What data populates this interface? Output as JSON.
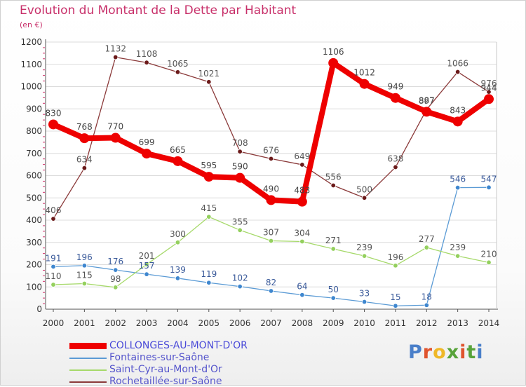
{
  "header": {
    "title": "Evolution du Montant de la Dette par Habitant",
    "subtitle": "(en €)"
  },
  "logo": {
    "text": "Proxiti",
    "letter_colors": [
      "#4a7fc9",
      "#e0542e",
      "#efb828",
      "#57a33a",
      "#e0542e",
      "#57a33a",
      "#4a7fc9"
    ]
  },
  "chart_data": {
    "type": "line",
    "title": "Evolution du Montant de la Dette par Habitant",
    "subtitle": "(en €)",
    "xlabel": "",
    "ylabel": "",
    "x": [
      "2000",
      "2001",
      "2002",
      "2003",
      "2004",
      "2005",
      "2006",
      "2007",
      "2008",
      "2009",
      "2010",
      "2011",
      "2012",
      "2013",
      "2014"
    ],
    "ylim": [
      0,
      1200
    ],
    "yticks": [
      "0",
      "100",
      "200",
      "300",
      "400",
      "500",
      "600",
      "700",
      "800",
      "900",
      "1000",
      "1100",
      "1200"
    ],
    "grid": "horizontal",
    "legend_position": "bottom-left",
    "series": [
      {
        "name": "COLLONGES-AU-MONT-D'OR",
        "color": "#ee0000",
        "marker_color": "#ee0000",
        "label_color": "#444444",
        "highlight": true,
        "values": [
          830,
          768,
          770,
          699,
          665,
          595,
          590,
          490,
          483,
          1106,
          1012,
          949,
          887,
          843,
          944
        ],
        "labels": [
          "830",
          "768",
          "770",
          "699",
          "665",
          "595",
          "590",
          "490",
          "483",
          "1106",
          "1012",
          "949",
          "887",
          "843",
          "944"
        ]
      },
      {
        "name": "Fontaines-sur-Saône",
        "color": "#5b9bd5",
        "marker_color": "#3f87cf",
        "label_color": "#3a5a9a",
        "highlight": false,
        "values": [
          191,
          196,
          176,
          157,
          139,
          119,
          102,
          82,
          64,
          50,
          33,
          15,
          18,
          546,
          547
        ],
        "labels": [
          "191",
          "196",
          "176",
          "157",
          "139",
          "119",
          "102",
          "82",
          "64",
          "50",
          "33",
          "15",
          "18",
          "546",
          "547"
        ]
      },
      {
        "name": "Saint-Cyr-au-Mont-d'Or",
        "color": "#a6d96a",
        "marker_color": "#94d05e",
        "label_color": "#555555",
        "highlight": false,
        "values": [
          110,
          115,
          98,
          201,
          300,
          415,
          355,
          307,
          304,
          271,
          239,
          196,
          277,
          239,
          210
        ],
        "labels": [
          "110",
          "115",
          "98",
          "201",
          "300",
          "415",
          "355",
          "307",
          "304",
          "271",
          "239",
          "196",
          "277",
          "239",
          "210"
        ]
      },
      {
        "name": "Rochetaillée-sur-Saône",
        "color": "#8b3a3a",
        "marker_color": "#6b1a1a",
        "label_color": "#555555",
        "highlight": false,
        "values": [
          406,
          634,
          1132,
          1108,
          1065,
          1021,
          708,
          676,
          649,
          556,
          500,
          638,
          897,
          1066,
          976
        ],
        "labels": [
          "406",
          "634",
          "1132",
          "1108",
          "1065",
          "1021",
          "708",
          "676",
          "649",
          "556",
          "500",
          "638",
          "897",
          "1066",
          "976"
        ]
      }
    ]
  }
}
